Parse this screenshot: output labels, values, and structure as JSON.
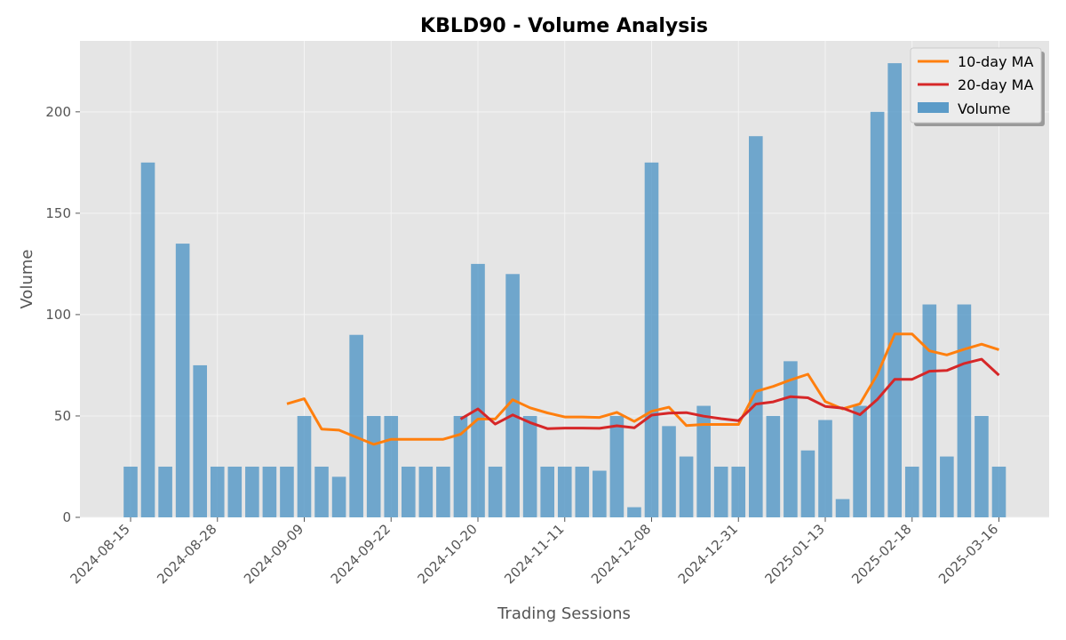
{
  "chart_data": {
    "type": "bar",
    "title": "KBLD90 - Volume Analysis",
    "xlabel": "Trading Sessions",
    "ylabel": "Volume",
    "ylim": [
      0,
      235
    ],
    "yticks": [
      0,
      50,
      100,
      150,
      200
    ],
    "grid": true,
    "legend_position": "top-right",
    "xtick_labels": [
      {
        "index": 0,
        "label": "2024-08-15"
      },
      {
        "index": 5,
        "label": "2024-08-28"
      },
      {
        "index": 10,
        "label": "2024-09-09"
      },
      {
        "index": 15,
        "label": "2024-09-22"
      },
      {
        "index": 20,
        "label": "2024-10-20"
      },
      {
        "index": 25,
        "label": "2024-11-11"
      },
      {
        "index": 30,
        "label": "2024-12-08"
      },
      {
        "index": 35,
        "label": "2024-12-31"
      },
      {
        "index": 40,
        "label": "2025-01-13"
      },
      {
        "index": 45,
        "label": "2025-02-18"
      },
      {
        "index": 50,
        "label": "2025-03-16"
      }
    ],
    "series": [
      {
        "name": "Volume",
        "kind": "bar",
        "color": "#5b9bc8",
        "values": [
          25,
          175,
          25,
          135,
          75,
          25,
          25,
          25,
          25,
          25,
          50,
          25,
          20,
          90,
          50,
          50,
          25,
          25,
          25,
          50,
          125,
          25,
          120,
          50,
          25,
          25,
          25,
          23,
          50,
          5,
          175,
          45,
          30,
          55,
          25,
          25,
          188,
          50,
          77,
          33,
          48,
          9,
          55,
          200,
          224,
          25,
          105,
          30,
          105,
          50,
          25
        ]
      },
      {
        "name": "10-day MA",
        "kind": "line",
        "color": "#ff7f0e",
        "values": [
          null,
          null,
          null,
          null,
          null,
          null,
          null,
          null,
          null,
          56,
          58.5,
          43.5,
          43,
          39.5,
          36,
          38.5,
          38.5,
          38.5,
          38.5,
          41,
          48.5,
          48.5,
          58,
          54,
          51.5,
          49.5,
          49.5,
          49.3,
          51.8,
          47.3,
          52.3,
          54.3,
          45.3,
          45.8,
          45.8,
          45.8,
          62.1,
          64.6,
          67.8,
          70.6,
          57.1,
          53.5,
          56.0,
          70.5,
          90.4,
          90.4,
          82.1,
          80.1,
          82.9,
          85.4,
          82.7
        ]
      },
      {
        "name": "20-day MA",
        "kind": "line",
        "color": "#d62728",
        "values": [
          null,
          null,
          null,
          null,
          null,
          null,
          null,
          null,
          null,
          null,
          null,
          null,
          null,
          null,
          null,
          null,
          null,
          null,
          null,
          48.5,
          53.5,
          46,
          50.5,
          46.75,
          43.75,
          44,
          44,
          43.9,
          45.15,
          44.15,
          50.4,
          51.4,
          51.65,
          49.9,
          48.65,
          47.65,
          55.85,
          56.95,
          59.55,
          58.95,
          54.7,
          53.9,
          50.65,
          58.15,
          68.1,
          68.1,
          72.1,
          72.45,
          75.9,
          78.0,
          70.1
        ]
      }
    ]
  }
}
